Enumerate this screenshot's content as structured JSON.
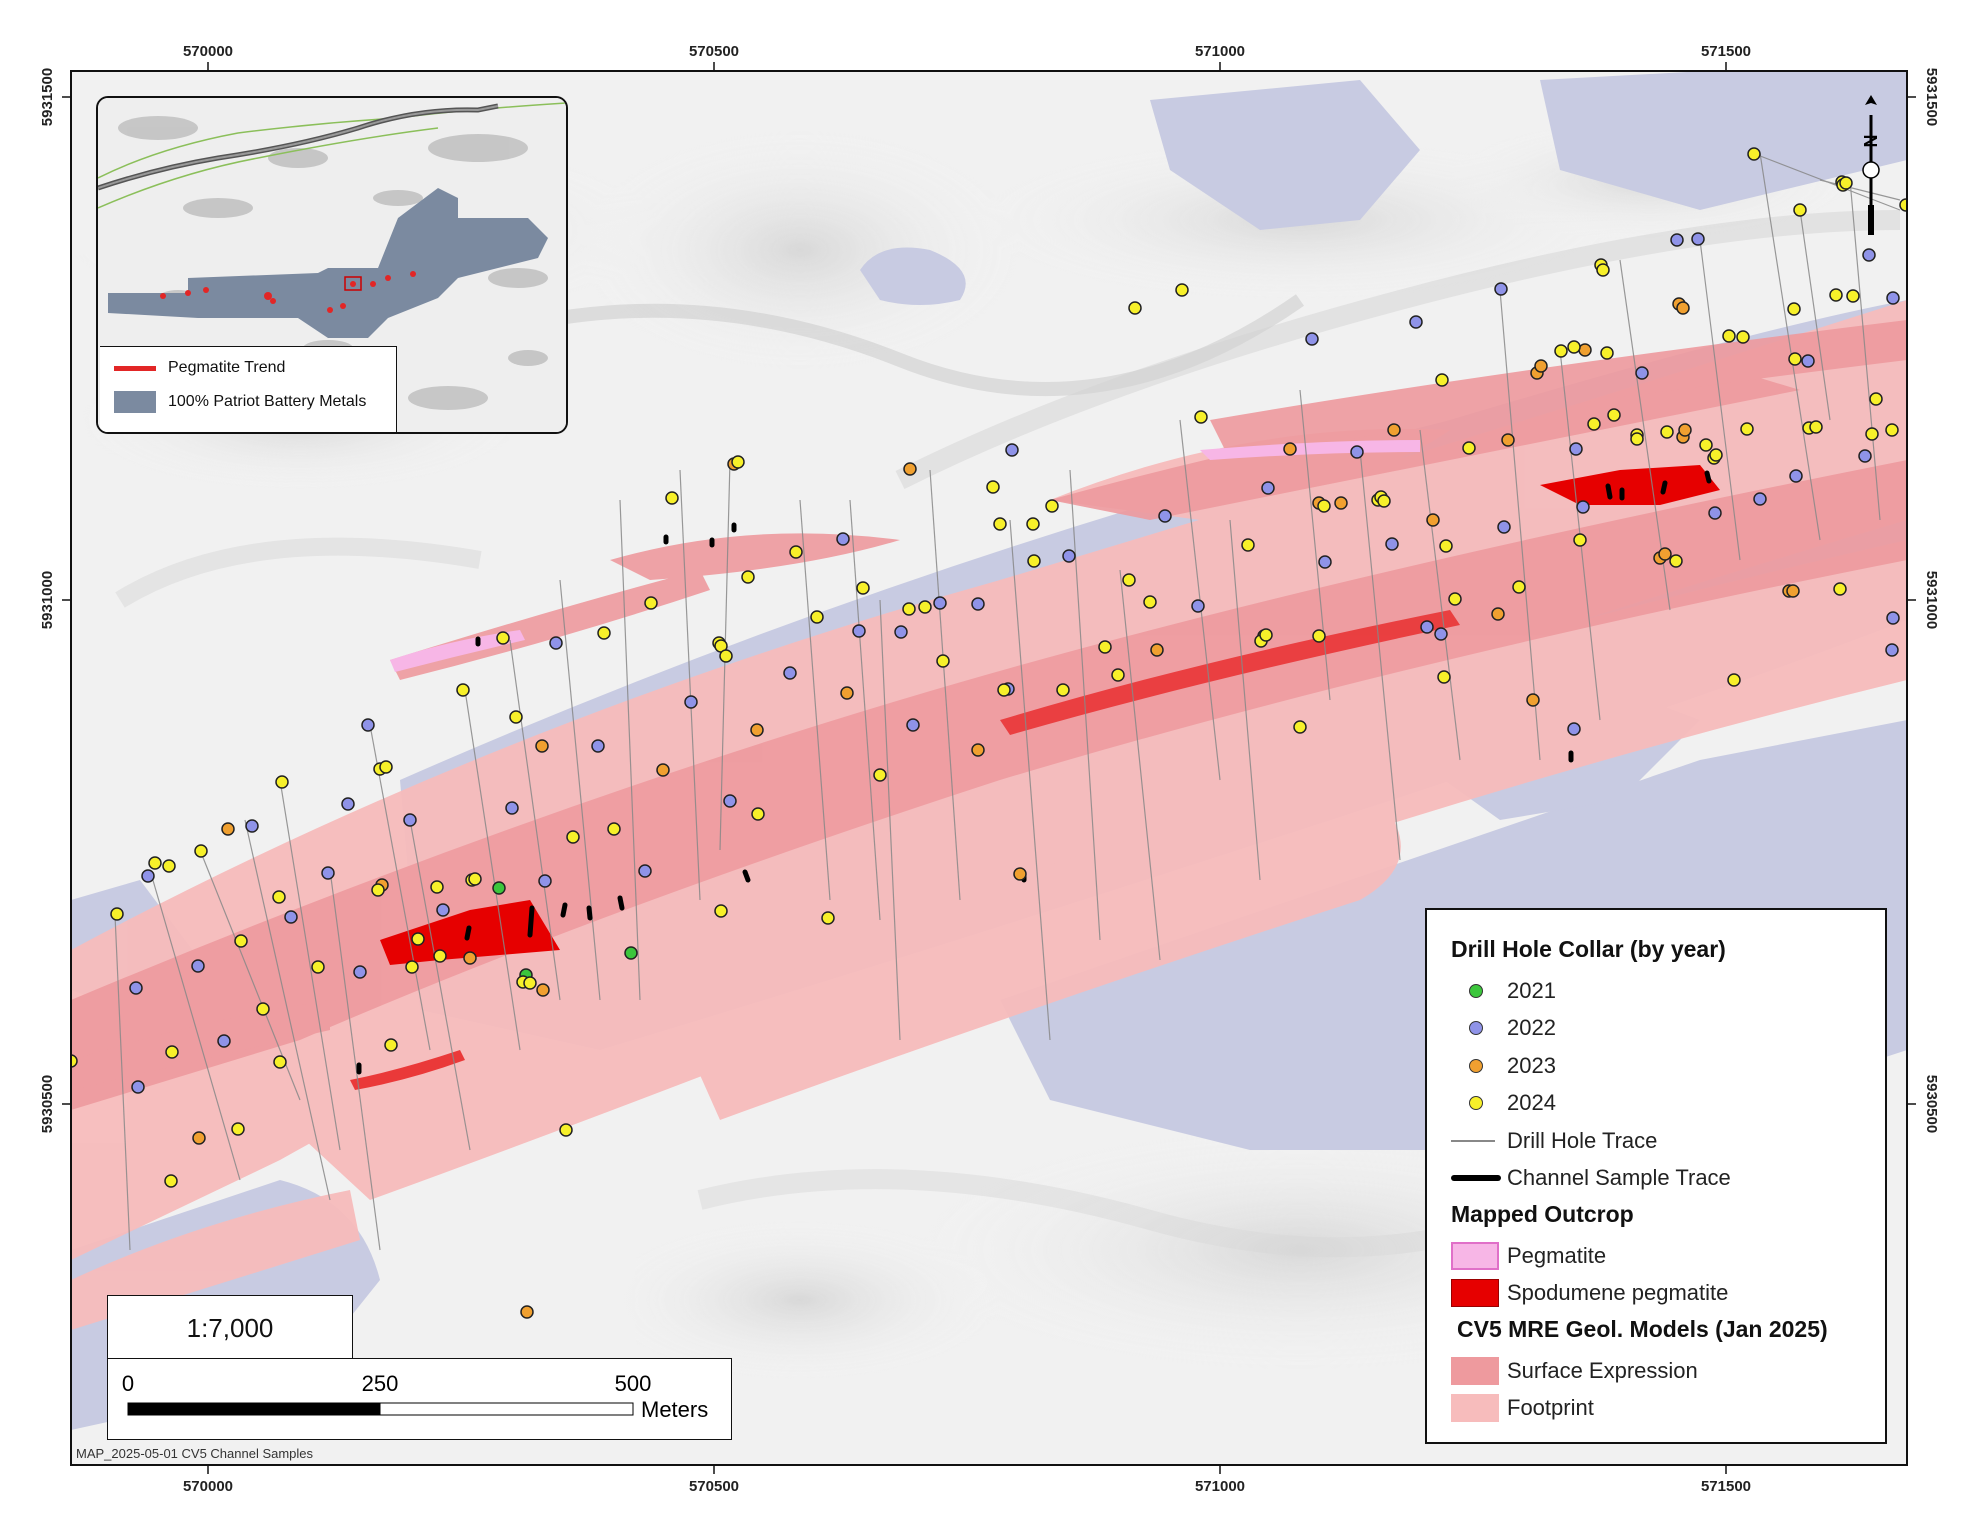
{
  "axes": {
    "top_ticks": [
      "570000",
      "570500",
      "571000",
      "571500"
    ],
    "bottom_ticks": [
      "570000",
      "570500",
      "571000",
      "571500"
    ],
    "left_ticks": [
      "5931500",
      "5931000",
      "5930500"
    ],
    "right_ticks": [
      "5931500",
      "5931000",
      "5930500"
    ]
  },
  "inset": {
    "legend": {
      "pegmatite_trend": "Pegmatite Trend",
      "claims": "100% Patriot Battery Metals"
    },
    "colors": {
      "trend": "#e22626",
      "claims": "#7b8aa0"
    }
  },
  "north_arrow": {
    "letter": "N"
  },
  "scale": {
    "ratio": "1:7,000",
    "labels": [
      "0",
      "250",
      "500"
    ],
    "unit": "Meters"
  },
  "map_id": "MAP_2025-05-01 CV5 Channel Samples",
  "legend": {
    "collar_heading": "Drill Hole Collar (by year)",
    "years": [
      {
        "label": "2021",
        "color": "#3cc63c"
      },
      {
        "label": "2022",
        "color": "#8f93e8"
      },
      {
        "label": "2023",
        "color": "#f0a030"
      },
      {
        "label": "2024",
        "color": "#f7f02a"
      }
    ],
    "drill_trace": "Drill Hole Trace",
    "channel_trace": "Channel Sample Trace",
    "outcrop_heading": "Mapped Outcrop",
    "pegmatite": "Pegmatite",
    "spodumene": "Spodumene pegmatite",
    "models_heading": "CV5 MRE Geol. Models (Jan 2025)",
    "surface": "Surface Expression",
    "footprint": "Footprint"
  },
  "colors": {
    "water": "#c8cbe2",
    "footprint": "#f7bcbc",
    "surface": "#ee9a9e",
    "pegmatite": "#f7b6e6",
    "spodumene": "#e60000"
  }
}
